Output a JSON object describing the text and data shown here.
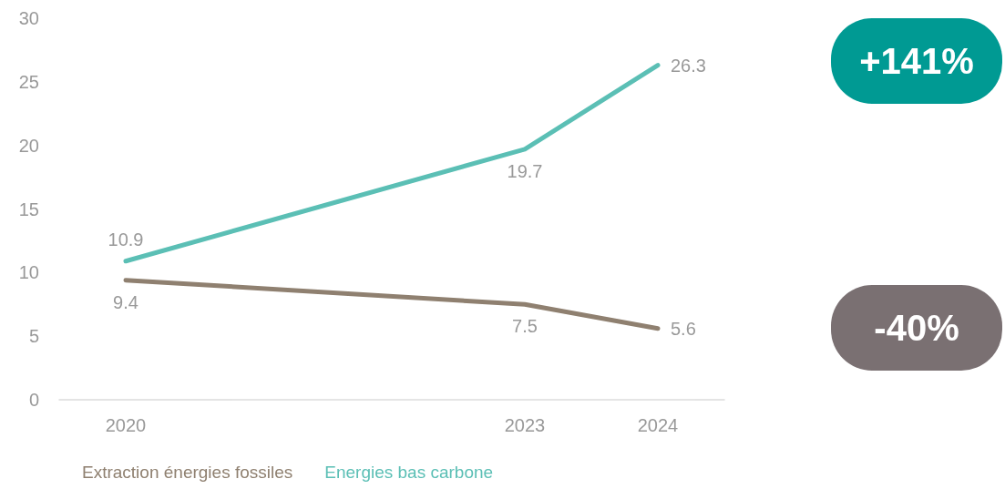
{
  "chart_data": {
    "type": "line",
    "x": [
      2020,
      2023,
      2024
    ],
    "series": [
      {
        "name": "Extraction énergies fossiles",
        "color": "#8f8070",
        "values": [
          9.4,
          7.5,
          5.6
        ]
      },
      {
        "name": "Energies bas carbone",
        "color": "#5bbfb5",
        "values": [
          10.9,
          19.7,
          26.3
        ]
      }
    ],
    "xlim": [
      2019.5,
      2024.5
    ],
    "xticks": [
      2020,
      2023,
      2024
    ],
    "ylim": [
      0,
      30
    ],
    "yticks": [
      0,
      5,
      10,
      15,
      20,
      25,
      30
    ],
    "annotations": [
      "-40%",
      "+141%"
    ],
    "data_labels": true,
    "grid": false,
    "legend": "bottom",
    "marker": "none",
    "line_style": "solid"
  }
}
